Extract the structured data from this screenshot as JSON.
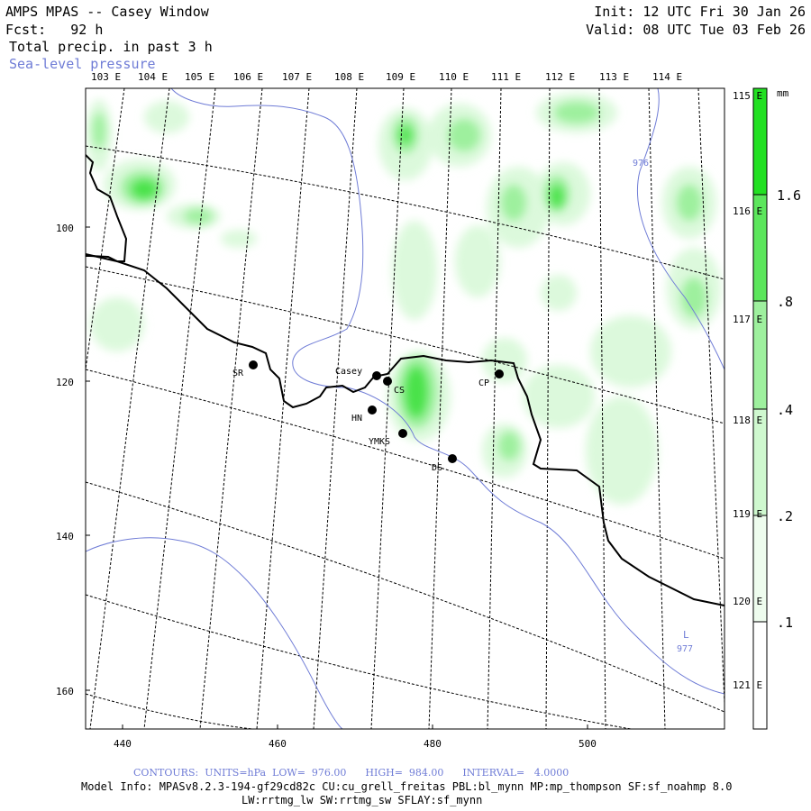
{
  "header": {
    "title": "AMPS MPAS -- Casey Window",
    "fcst": "Fcst:   92 h",
    "field": "Total precip. in past 3 h",
    "overlay": "Sea-level pressure",
    "init": "Init: 12 UTC Fri 30 Jan 26",
    "valid": "Valid: 08 UTC Tue 03 Feb 26"
  },
  "top_lon_labels": [
    "103 E",
    "104 E",
    "105 E",
    "106 E",
    "107 E",
    "108 E",
    "109 E",
    "110 E",
    "111 E",
    "112 E",
    "113 E",
    "114 E"
  ],
  "right_lon_labels": [
    "115 E",
    "116 E",
    "117 E",
    "118 E",
    "119 E",
    "120 E",
    "121 E"
  ],
  "x_ticks": [
    "440",
    "460",
    "480",
    "500"
  ],
  "y_ticks": [
    "100",
    "120",
    "140",
    "160"
  ],
  "colorbar": {
    "unit": "mm",
    "labels": [
      "1.6",
      ".8",
      ".4",
      ".2",
      ".1"
    ],
    "colors": [
      "#22e022",
      "#5ce65c",
      "#9ef09e",
      "#cff8cf",
      "#eefcee",
      "#ffffff"
    ]
  },
  "stations": [
    {
      "name": "SR"
    },
    {
      "name": "Casey"
    },
    {
      "name": "CS"
    },
    {
      "name": "CP"
    },
    {
      "name": "HN"
    },
    {
      "name": "YMKS"
    },
    {
      "name": "DS"
    }
  ],
  "pressure_labels": [
    "976",
    "L",
    "977"
  ],
  "footer": {
    "contours": "CONTOURS:  UNITS=hPa  LOW=  976.00      HIGH=  984.00      INTERVAL=   4.0000",
    "model_info": "Model Info: MPASv8.2.3-194-gf29cd82c CU:cu_grell_freitas PBL:bl_mynn MP:mp_thompson SF:sf_noahmp 8.0",
    "model_info2": "LW:rrtmg_lw SW:rrtmg_sw SFLAY:sf_mynn"
  }
}
